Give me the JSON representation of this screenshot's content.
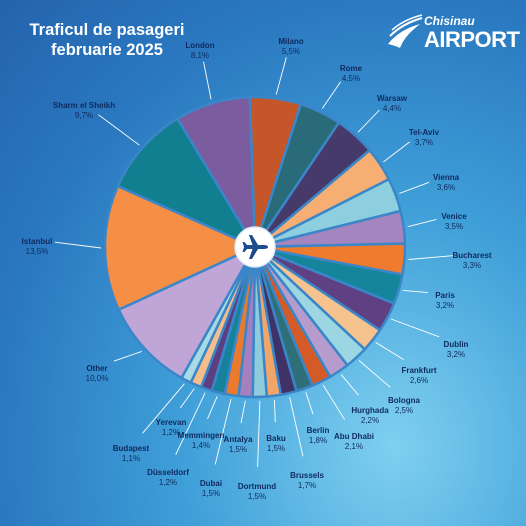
{
  "title_line1": "Traficul de pasageri",
  "title_line2": "februarie 2025",
  "logo": {
    "small": "Chisinau",
    "big": "AIRPORT"
  },
  "center_icon": "airplane-icon",
  "chart_data": {
    "type": "pie",
    "unit": "%",
    "slices": [
      {
        "name": "Milano",
        "label": "5,5%",
        "value": 5.5,
        "color": "#c5562a"
      },
      {
        "name": "Rome",
        "label": "4,5%",
        "value": 4.5,
        "color": "#2a6b7a"
      },
      {
        "name": "Warsaw",
        "label": "4,4%",
        "value": 4.4,
        "color": "#463a6a"
      },
      {
        "name": "Tel-Aviv",
        "label": "3,7%",
        "value": 3.7,
        "color": "#f6ae72"
      },
      {
        "name": "Vienna",
        "label": "3,6%",
        "value": 3.6,
        "color": "#8ecfdf"
      },
      {
        "name": "Venice",
        "label": "3,5%",
        "value": 3.5,
        "color": "#a385c0"
      },
      {
        "name": "Bucharest",
        "label": "3,3%",
        "value": 3.3,
        "color": "#ef7c2e"
      },
      {
        "name": "Paris",
        "label": "3,2%",
        "value": 3.2,
        "color": "#15859b"
      },
      {
        "name": "Dublin",
        "label": "3,2%",
        "value": 3.2,
        "color": "#5e4083"
      },
      {
        "name": "Frankfurt",
        "label": "2,6%",
        "value": 2.6,
        "color": "#f6c28e"
      },
      {
        "name": "Bologna",
        "label": "2,5%",
        "value": 2.5,
        "color": "#9bd6e2"
      },
      {
        "name": "Hurghada",
        "label": "2,2%",
        "value": 2.2,
        "color": "#b59ccc"
      },
      {
        "name": "Abu Dhabi",
        "label": "2,1%",
        "value": 2.1,
        "color": "#d45a27"
      },
      {
        "name": "Berlin",
        "label": "1,8%",
        "value": 1.8,
        "color": "#2e6f7a"
      },
      {
        "name": "Brussels",
        "label": "1,7%",
        "value": 1.7,
        "color": "#3e3266"
      },
      {
        "name": "Baku",
        "label": "1,5%",
        "value": 1.5,
        "color": "#f2a568"
      },
      {
        "name": "Dortmund",
        "label": "1,5%",
        "value": 1.5,
        "color": "#8fcbdb"
      },
      {
        "name": "Antalya",
        "label": "1,5%",
        "value": 1.5,
        "color": "#a67fbf"
      },
      {
        "name": "Dubai",
        "label": "1,5%",
        "value": 1.5,
        "color": "#ec7a2c"
      },
      {
        "name": "Memmingen",
        "label": "1,4%",
        "value": 1.4,
        "color": "#15819a"
      },
      {
        "name": "Düsseldorf",
        "label": "1,2%",
        "value": 1.2,
        "color": "#5b3f80"
      },
      {
        "name": "Yerevan",
        "label": "1,2%",
        "value": 1.2,
        "color": "#f5bd8a"
      },
      {
        "name": "Budapest",
        "label": "1,1%",
        "value": 1.1,
        "color": "#a6dbe6"
      },
      {
        "name": "Other",
        "label": "10,0%",
        "value": 10.0,
        "color": "#bfa6d6"
      },
      {
        "name": "Istanbul",
        "label": "13,5%",
        "value": 13.5,
        "color": "#f58f45"
      },
      {
        "name": "Sharm el Sheikh",
        "label": "9,7%",
        "value": 9.7,
        "color": "#117f90"
      },
      {
        "name": "London",
        "label": "8,1%",
        "value": 8.1,
        "color": "#7a5c9f"
      }
    ]
  }
}
